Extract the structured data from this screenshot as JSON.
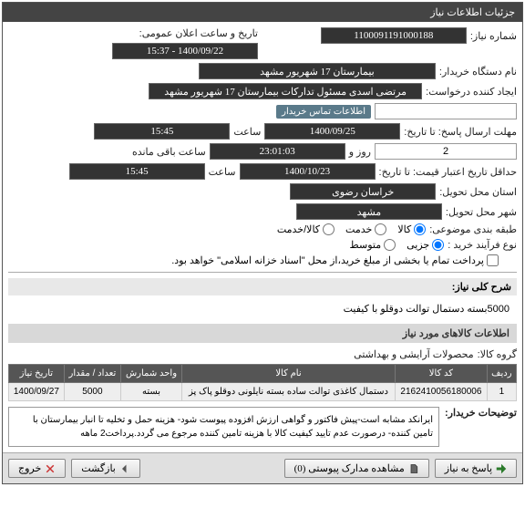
{
  "panel_title": "جزئیات اطلاعات نیاز",
  "fields": {
    "request_no_label": "شماره نیاز:",
    "request_no": "1100091191000188",
    "announce_date_label": "تاریخ و ساعت اعلان عمومی:",
    "announce_date": "1400/09/22 - 15:37",
    "buyer_org_label": "نام دستگاه خریدار:",
    "buyer_org": "بیمارستان 17 شهریور مشهد",
    "requester_label": "ایجاد کننده درخواست:",
    "requester": "مرتضی اسدی مسئول تدارکات بیمارستان 17 شهریور مشهد",
    "contact_link": "اطلاعات تماس خریدار",
    "deadline_label": "مهلت ارسال پاسخ: تا تاریخ:",
    "deadline_date": "1400/09/25",
    "time_label": "ساعت",
    "deadline_time": "15:45",
    "days_count": "2",
    "days_and": "روز و",
    "remaining_time": "23:01:03",
    "remaining_label": "ساعت باقی مانده",
    "validity_label": "حداقل تاریخ اعتبار قیمت: تا تاریخ:",
    "validity_date": "1400/10/23",
    "validity_time": "15:45",
    "province_label": "استان محل تحویل:",
    "province": "خراسان رضوی",
    "city_label": "شهر محل تحویل:",
    "city": "مشهد",
    "category_label": "طبقه بندی موضوعی:",
    "cat_goods": "کالا",
    "cat_service": "خدمت",
    "cat_goods_service": "کالا/خدمت",
    "process_label": "نوع فرآیند خرید :",
    "proc_minor": "جزیی",
    "proc_medium": "متوسط",
    "payment_note": "پرداخت تمام یا بخشی از مبلغ خرید،از محل \"اسناد خزانه اسلامی\" خواهد بود.",
    "desc_label": "شرح کلی نیاز:",
    "desc_text": "5000بسته دستمال توالت دوقلو با کیفیت",
    "items_section": "اطلاعات کالاهای مورد نیاز",
    "group_label": "گروه کالا:",
    "group_value": "محصولات آرایشی و بهداشتی"
  },
  "table": {
    "headers": [
      "ردیف",
      "کد کالا",
      "نام کالا",
      "واحد شمارش",
      "تعداد / مقدار",
      "تاریخ نیاز"
    ],
    "rows": [
      [
        "1",
        "2162410056180006",
        "دستمال کاغذی توالت ساده بسته نایلونی دوقلو پاک پز",
        "بسته",
        "5000",
        "1400/09/27"
      ]
    ]
  },
  "notes": {
    "label": "توضیحات خریدار:",
    "text": "ایرانکد مشابه است-پیش فاکتور و گواهی ارزش افزوده پیوست شود- هزینه حمل و تخلیه تا انبار بیمارستان با تامین کننده-\nدرصورت عدم تایید کیفیت کالا با هزینه تامین کننده مرجوع می گردد.پرداخت2 ماهه"
  },
  "buttons": {
    "reply": "پاسخ به نیاز",
    "attachments": "مشاهده مدارک پیوستی (0)",
    "back": "بازگشت",
    "exit": "خروج"
  },
  "colors": {
    "header_bg": "#444444",
    "input_bg": "#333333",
    "th_bg": "#555555",
    "link_bg": "#5a7a8a"
  }
}
